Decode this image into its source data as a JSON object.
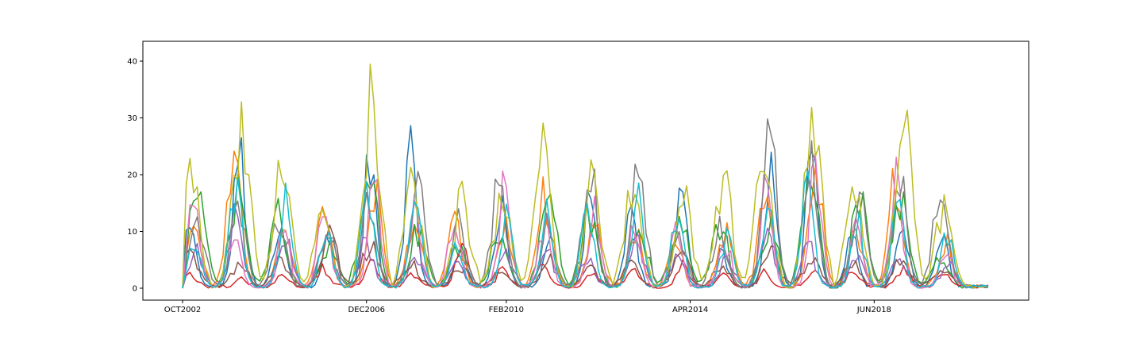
{
  "chart_data": {
    "type": "line",
    "title": "",
    "xlabel": "",
    "ylabel": "",
    "x_range": [
      "2002-10",
      "2021-01"
    ],
    "ylim": [
      -2.1,
      43.5
    ],
    "grid": false,
    "legend": "none",
    "x_ticks": [
      {
        "date": "2002-10",
        "label": "OCT2002"
      },
      {
        "date": "2006-12",
        "label": "DEC2006"
      },
      {
        "date": "2010-02",
        "label": "FEB2010"
      },
      {
        "date": "2014-04",
        "label": "APR2014"
      },
      {
        "date": "2018-06",
        "label": "JUN2018"
      }
    ],
    "y_ticks": [
      0,
      10,
      20,
      30,
      40
    ],
    "peak_dates": [
      "2003-01",
      "2004-01",
      "2005-01",
      "2006-01",
      "2007-01",
      "2008-01",
      "2009-01",
      "2010-01",
      "2011-01",
      "2012-01",
      "2013-01",
      "2014-01",
      "2015-01",
      "2016-01",
      "2017-01",
      "2018-01",
      "2019-01",
      "2020-01"
    ],
    "series_colors": [
      "#1f77b4",
      "#ff7f0e",
      "#2ca02c",
      "#d62728",
      "#9467bd",
      "#8c564b",
      "#e377c2",
      "#7f7f7f",
      "#bcbd22",
      "#17becf"
    ],
    "series": [
      {
        "color": "#1f77b4",
        "peaks": [
          12,
          30,
          15,
          13,
          28,
          31,
          8,
          19,
          11,
          21,
          16,
          20,
          8,
          24,
          27,
          11,
          16,
          14
        ]
      },
      {
        "color": "#ff7f0e",
        "peaks": [
          14,
          26,
          14,
          16,
          22,
          16,
          14,
          13,
          20,
          13,
          12,
          9,
          13,
          24,
          26,
          12,
          25,
          10
        ]
      },
      {
        "color": "#2ca02c",
        "peaks": [
          21,
          20,
          16,
          9,
          28,
          12,
          9,
          11,
          20,
          15,
          13,
          15,
          14,
          13,
          25,
          19,
          20,
          6
        ]
      },
      {
        "color": "#d62728",
        "peaks": [
          3,
          2,
          3,
          4,
          6,
          3,
          9,
          4,
          5,
          3,
          4,
          5,
          3,
          3,
          4,
          4,
          4,
          3
        ]
      },
      {
        "color": "#9467bd",
        "peaks": [
          8,
          16,
          10,
          11,
          10,
          7,
          6,
          7,
          8,
          6,
          10,
          7,
          6,
          11,
          9,
          7,
          8,
          5
        ]
      },
      {
        "color": "#8c564b",
        "peaks": [
          7,
          5,
          6,
          11,
          9,
          5,
          4,
          3,
          6,
          4,
          5,
          7,
          4,
          8,
          6,
          5,
          6,
          4
        ]
      },
      {
        "color": "#e377c2",
        "peaks": [
          19,
          12,
          12,
          18,
          24,
          16,
          16,
          22,
          14,
          18,
          14,
          12,
          10,
          21,
          25,
          14,
          25,
          9
        ]
      },
      {
        "color": "#7f7f7f",
        "peaks": [
          16,
          18,
          16,
          15,
          19,
          23,
          14,
          23,
          14,
          28,
          25,
          10,
          13,
          34,
          32,
          19,
          24,
          22
        ]
      },
      {
        "color": "#bcbd22",
        "peaks": [
          24,
          38,
          27,
          16,
          41,
          23,
          19,
          21,
          29,
          24,
          25,
          20,
          25,
          29,
          41,
          21,
          37,
          17
        ]
      },
      {
        "color": "#17becf",
        "peaks": [
          11,
          22,
          19,
          12,
          26,
          20,
          11,
          16,
          18,
          17,
          20,
          16,
          12,
          18,
          22,
          16,
          18,
          12
        ]
      }
    ]
  }
}
